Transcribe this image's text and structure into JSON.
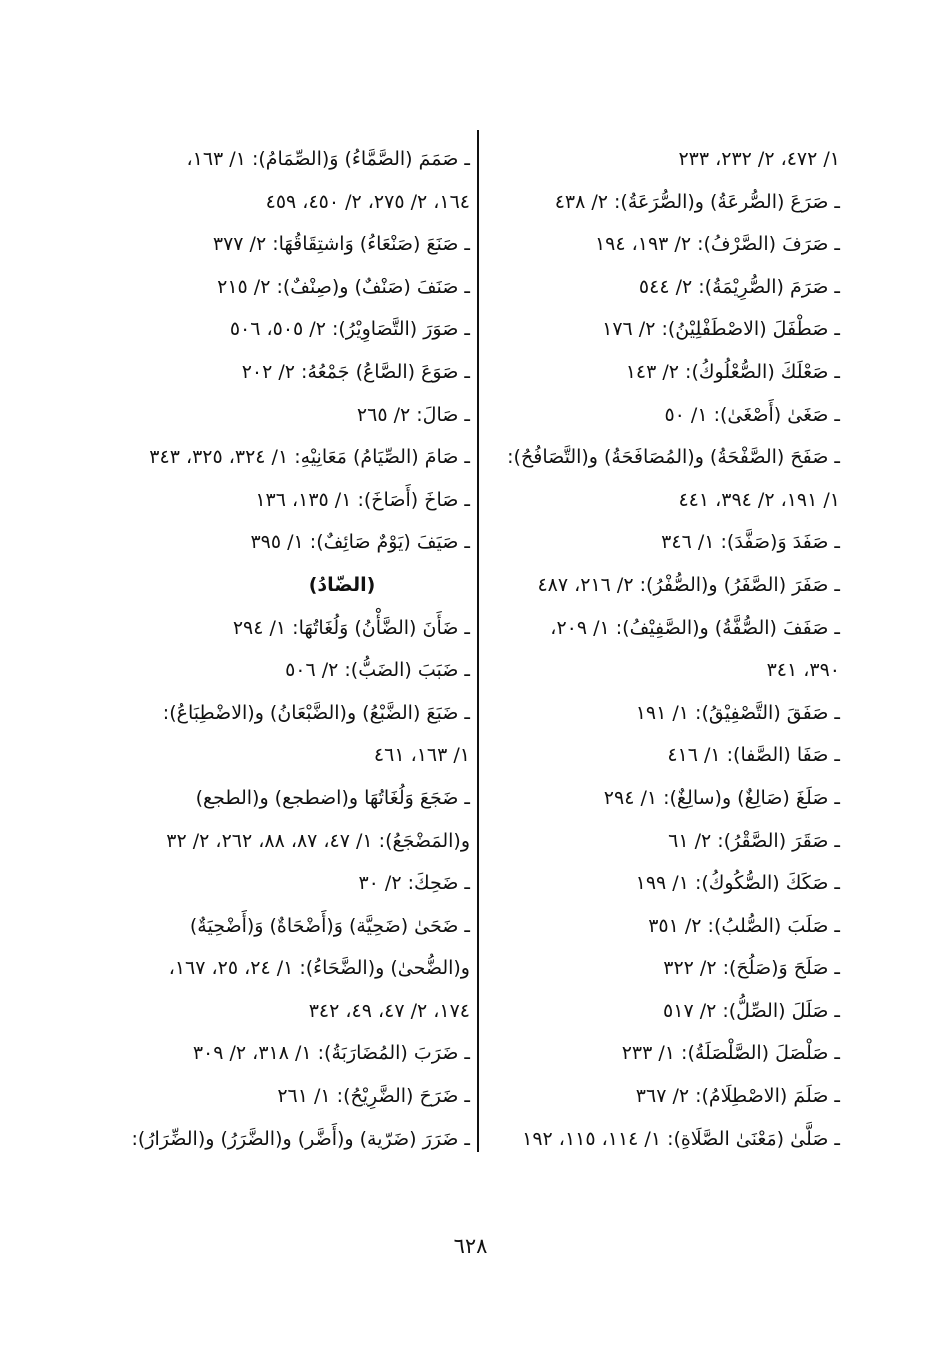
{
  "right_column": [
    {
      "text": "١/ ٤٧٢، ٢/ ٢٣٢، ٢٣٣"
    },
    {
      "text": "ـ صَرَعَ (الصُّرعَةُ) و(الصُّرَعَةُ): ٢/ ٤٣٨"
    },
    {
      "text": "ـ صَرَفَ (الصَّرْفُ): ٢/ ١٩٣، ١٩٤"
    },
    {
      "text": "ـ صَرَمَ (الصُّرِيْمَةُ): ٢/ ٥٤٤"
    },
    {
      "text": "ـ صَطْفَلَ (الاصْطَفْلِيْنُ): ٢/ ١٧٦"
    },
    {
      "text": "ـ صَعْلَكَ (الصُّعْلُوكُ): ٢/ ١٤٣"
    },
    {
      "text": "ـ صَغَىٰ (أَصْغَىٰ): ١/ ٥٠"
    },
    {
      "text": "ـ صَفَحَ (الصَّفْحَةُ) و(المُصَافَحَةُ) و(التَّصَافُحُ):"
    },
    {
      "text": "١/ ١٩١، ٢/ ٣٩٤، ٤٤١"
    },
    {
      "text": "ـ صَفَدَ وَ(صَفَّدَ): ١/ ٣٤٦"
    },
    {
      "text": "ـ صَفَرَ (الصَّفَرُ) و(الصُّفْرُ): ٢/ ٢١٦، ٤٨٧"
    },
    {
      "text": "ـ صَفَفَ (الصُّفَّةُ) و(الصَّفِيْفُ): ١/ ٢٠٩،"
    },
    {
      "text": "٣٩٠، ٣٤١"
    },
    {
      "text": "ـ صَفَقَ (التَّصْفِيْقُ): ١/ ١٩١"
    },
    {
      "text": "ـ صَفَا (الصَّفا): ١/ ٤١٦"
    },
    {
      "text": "ـ صَلَغَ (صَالِغٌ) و(سالِغٌ): ١/ ٢٩٤"
    },
    {
      "text": "ـ صَقَرَ (الصَّقْرُ): ٢/ ٦١"
    },
    {
      "text": "ـ صَكَكَ (الصُّكُوكُ): ١/ ١٩٩"
    },
    {
      "text": "ـ صَلَبَ (الصُّلبُ): ٢/ ٣٥١"
    },
    {
      "text": "ـ صَلَحَ وَ(صَلُحَ): ٢/ ٣٢٢"
    },
    {
      "text": "ـ صَلَلَ (الصِّلُّ): ٢/ ٥١٧"
    },
    {
      "text": "ـ صَلْصَلَ (الصَّلْصَلَةُ): ١/ ٢٣٣"
    },
    {
      "text": "ـ صَلَمَ (الاصْطِلَامُ): ٢/ ٣٦٧"
    },
    {
      "text": "ـ صَلَّىٰ (مَعْنَىٰ الصَّلَاةِ): ١/ ١١٤، ١١٥، ١٩٢"
    }
  ],
  "left_column": [
    {
      "text": "ـ صَمَمَ (الصَّمَّاءُ) وَ(الصِّمَامُ): ١/ ١٦٣،"
    },
    {
      "text": "١٦٤، ٢/ ٢٧٥، ٢/ ٤٥٠، ٤٥٩"
    },
    {
      "text": "ـ صَنَعَ (صَنْعَاءُ) وَاشتِقَاقُهَا: ٢/ ٣٧٧"
    },
    {
      "text": "ـ صَنَفَ (صَنْفٌ) و(صِنْفٌ): ٢/ ٢١٥"
    },
    {
      "text": "ـ صَوَرَ (التَّصَاوِيْرُ): ٢/ ٥٠٥، ٥٠٦"
    },
    {
      "text": "ـ صَوَعَ (الصَّاعُ) جَمْعُهُ: ٢/ ٢٠٢"
    },
    {
      "text": "ـ صَالَ: ٢/ ٢٦٥"
    },
    {
      "text": "ـ صَامَ (الصِّيَامُ) مَعَانِيْهِ: ١/ ٣٢٤، ٣٢٥، ٣٤٣"
    },
    {
      "text": "ـ صَاخَ (أَصَاخَ): ١/ ١٣٥، ١٣٦"
    },
    {
      "text": "ـ صَيَفَ (يَوْمٌ صَائِفٌ): ١/ ٣٩٥"
    },
    {
      "text": "(الضّادُ)",
      "heading": true
    },
    {
      "text": "ـ ضَأَنَ (الضَّأْنُ) وَلُغَاتُهَا: ١/ ٢٩٤"
    },
    {
      "text": "ـ ضَبَبَ (الضَبُّ): ٢/ ٥٠٦"
    },
    {
      "text": "ـ ضَبَعَ (الضَّبْعُ) و(الضَّبْعَانُ) و(الاضْطِبَاعُ):"
    },
    {
      "text": "١/ ١٦٣، ٤٦١"
    },
    {
      "text": "ـ ضَجَعَ وَلُغَاتُهَا و(اضطجع) و(الطجع)"
    },
    {
      "text": "و(المَضْجَعُ): ١/ ٤٧، ٨٧، ٨٨، ٢٦٢، ٢/ ٣٢"
    },
    {
      "text": "ـ ضَحِكَ: ٢/ ٣٠"
    },
    {
      "text": "ـ ضَحَىٰ (ضَحِيَّة) وَ(أَضْحَاةٌ) وَ(أَضْحِيَةٌ)"
    },
    {
      "text": "و(الضُّحىٰ) و(الضَّحَاءُ): ١/ ٢٤، ٢٥، ١٦٧،"
    },
    {
      "text": "١٧٤، ٢/ ٤٧، ٤٩، ٣٤٢"
    },
    {
      "text": "ـ ضَرَبَ (المُضَارَبَةُ): ١/ ٣١٨، ٢/ ٣٠٩"
    },
    {
      "text": "ـ ضَرَحَ (الضَّرِيْحُ): ١/ ٢٦١"
    },
    {
      "text": "ـ ضَرَرَ (ضَرّية) و(أَضَّر) و(الضَّرَرُ) و(الضِّرَارُ):"
    }
  ],
  "page_number": "٦٢٨"
}
